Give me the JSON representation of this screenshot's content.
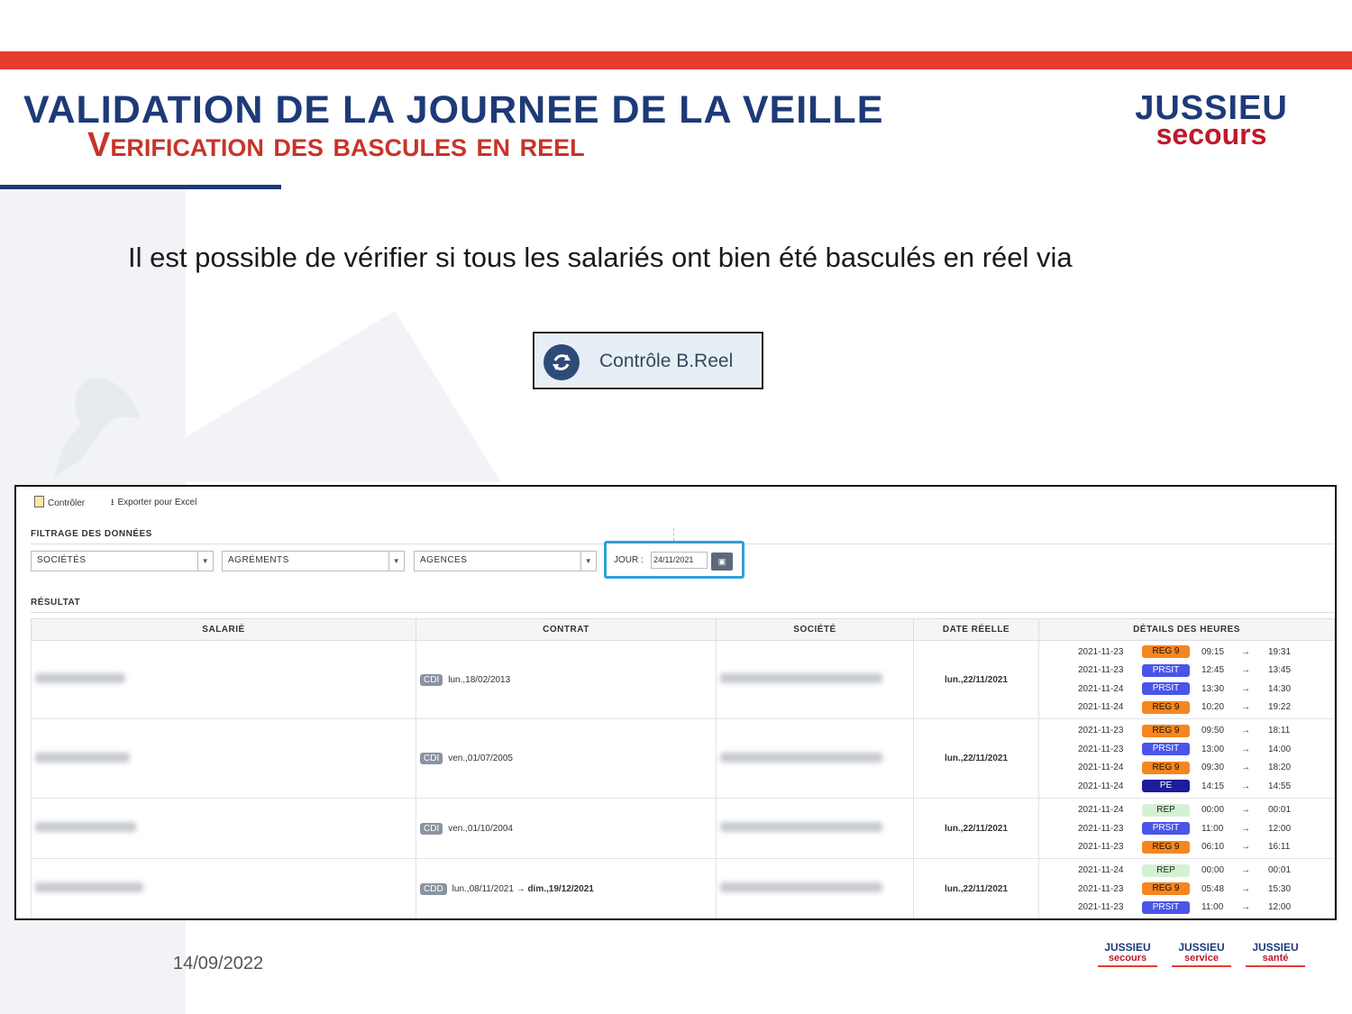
{
  "slide": {
    "title": "VALIDATION DE LA JOURNEE DE LA VEILLE",
    "subtitle": "Verification des bascules en reel",
    "intro": "Il est possible de vérifier si tous les salariés ont bien été basculés en réel via",
    "button_label": "Contrôle B.Reel",
    "date": "14/09/2022",
    "brand_color": "#1d3a78",
    "accent_color": "#e63b2f"
  },
  "logo": {
    "word1": "JUSSIEU",
    "word2": "secours"
  },
  "footer_logos": [
    {
      "top": "JUSSIEU",
      "bottom": "secours"
    },
    {
      "top": "JUSSIEU",
      "bottom": "service"
    },
    {
      "top": "JUSSIEU",
      "bottom": "santé"
    }
  ],
  "app": {
    "toolbar": {
      "control": "Contrôler",
      "export": "Exporter pour Excel"
    },
    "filter_title": "FILTRAGE DES DONNÉES",
    "filters": {
      "societes": "SOCIÉTÉS",
      "agrements": "AGRÉMENTS",
      "agences": "AGENCES"
    },
    "jour_label": "JOUR :",
    "jour_value": "24/11/2021",
    "result_title": "RÉSULTAT",
    "columns": [
      "SALARIÉ",
      "CONTRAT",
      "SOCIÉTÉ",
      "DATE RÉELLE",
      "DÉTAILS DES HEURES"
    ],
    "rows": [
      {
        "contract_type": "CDI",
        "contract_dates": "lun.,18/02/2013",
        "date_reelle": "lun.,22/11/2021",
        "details": [
          {
            "date": "2021-11-23",
            "tag": "REG 9",
            "start": "09:15",
            "end": "19:31"
          },
          {
            "date": "2021-11-23",
            "tag": "PRSIT",
            "start": "12:45",
            "end": "13:45"
          },
          {
            "date": "2021-11-24",
            "tag": "PRSIT",
            "start": "13:30",
            "end": "14:30"
          },
          {
            "date": "2021-11-24",
            "tag": "REG 9",
            "start": "10:20",
            "end": "19:22"
          }
        ]
      },
      {
        "contract_type": "CDI",
        "contract_dates": "ven.,01/07/2005",
        "date_reelle": "lun.,22/11/2021",
        "details": [
          {
            "date": "2021-11-23",
            "tag": "REG 9",
            "start": "09:50",
            "end": "18:11"
          },
          {
            "date": "2021-11-23",
            "tag": "PRSIT",
            "start": "13:00",
            "end": "14:00"
          },
          {
            "date": "2021-11-24",
            "tag": "REG 9",
            "start": "09:30",
            "end": "18:20"
          },
          {
            "date": "2021-11-24",
            "tag": "PE",
            "start": "14:15",
            "end": "14:55"
          }
        ]
      },
      {
        "contract_type": "CDI",
        "contract_dates": "ven.,01/10/2004",
        "date_reelle": "lun.,22/11/2021",
        "details": [
          {
            "date": "2021-11-24",
            "tag": "REP",
            "start": "00:00",
            "end": "00:01"
          },
          {
            "date": "2021-11-23",
            "tag": "PRSIT",
            "start": "11:00",
            "end": "12:00"
          },
          {
            "date": "2021-11-23",
            "tag": "REG 9",
            "start": "06:10",
            "end": "16:11"
          }
        ]
      },
      {
        "contract_type": "CDD",
        "contract_dates": "lun.,08/11/2021",
        "contract_end": "dim.,19/12/2021",
        "date_reelle": "lun.,22/11/2021",
        "details": [
          {
            "date": "2021-11-24",
            "tag": "REP",
            "start": "00:00",
            "end": "00:01"
          },
          {
            "date": "2021-11-23",
            "tag": "REG 9",
            "start": "05:48",
            "end": "15:30"
          },
          {
            "date": "2021-11-23",
            "tag": "PRSIT",
            "start": "11:00",
            "end": "12:00"
          }
        ]
      }
    ]
  }
}
